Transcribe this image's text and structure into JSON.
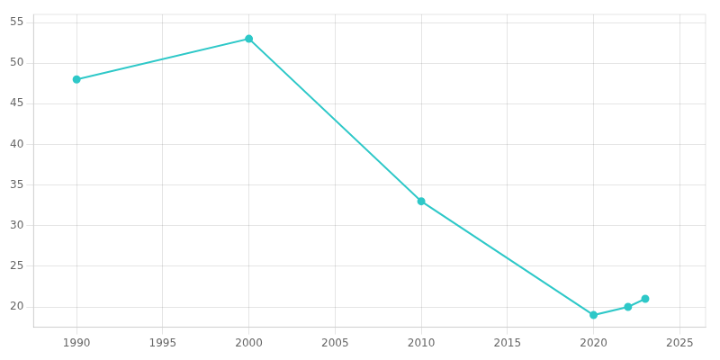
{
  "chart_data": {
    "type": "line",
    "x": [
      1990,
      2000,
      2010,
      2020,
      2022,
      2023
    ],
    "values": [
      48,
      53,
      33,
      19,
      20,
      21
    ],
    "color": "#2ec8c8",
    "marker": "circle",
    "xlim": [
      1987.5,
      2026.5
    ],
    "ylim": [
      17.5,
      56
    ],
    "xticks": [
      1990,
      1995,
      2000,
      2005,
      2010,
      2015,
      2020,
      2025
    ],
    "yticks": [
      20,
      25,
      30,
      35,
      40,
      45,
      50,
      55
    ],
    "grid": true
  }
}
